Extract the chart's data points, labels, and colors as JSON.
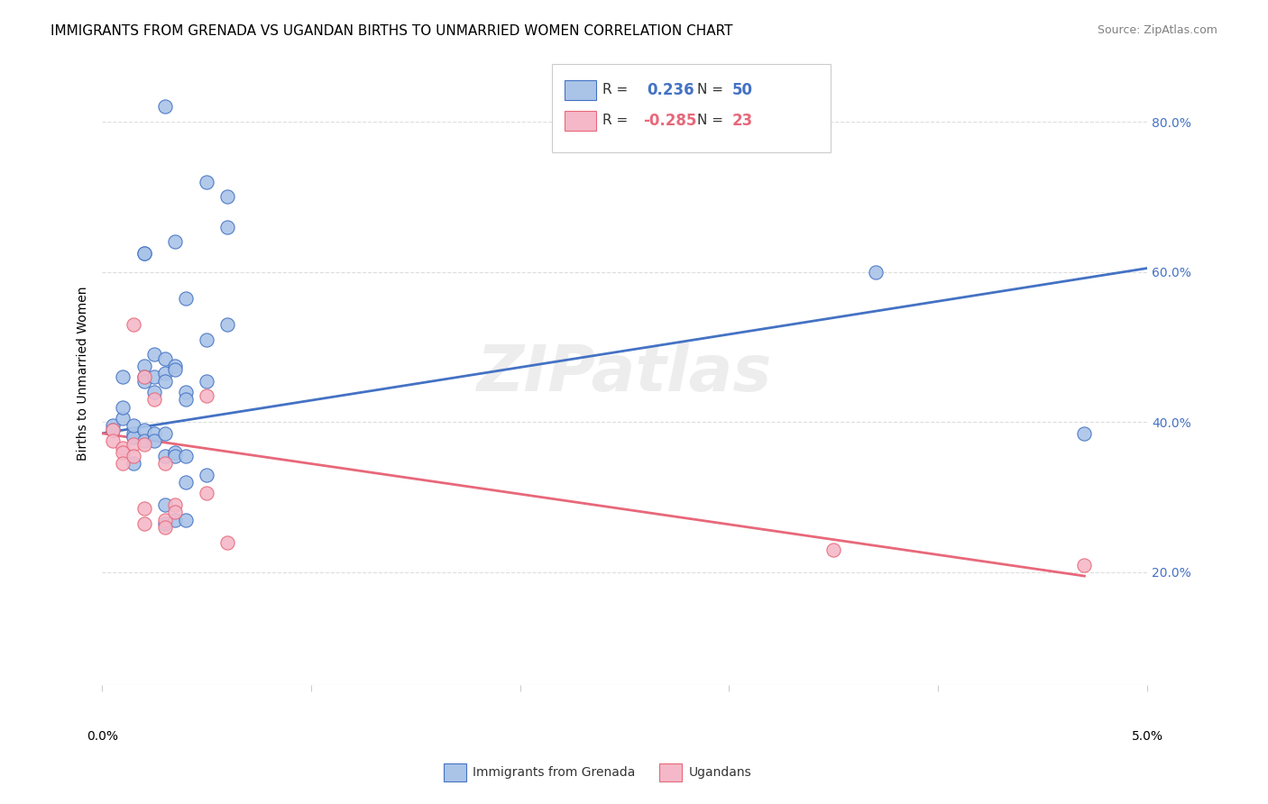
{
  "title": "IMMIGRANTS FROM GRENADA VS UGANDAN BIRTHS TO UNMARRIED WOMEN CORRELATION CHART",
  "source": "Source: ZipAtlas.com",
  "ylabel": "Births to Unmarried Women",
  "ytick_values": [
    0.2,
    0.4,
    0.6,
    0.8
  ],
  "xmin": 0.0,
  "xmax": 0.05,
  "ymin": 0.05,
  "ymax": 0.88,
  "blue_scatter": [
    [
      0.0005,
      0.395
    ],
    [
      0.0005,
      0.39
    ],
    [
      0.001,
      0.405
    ],
    [
      0.001,
      0.42
    ],
    [
      0.001,
      0.46
    ],
    [
      0.0015,
      0.385
    ],
    [
      0.0015,
      0.38
    ],
    [
      0.0015,
      0.395
    ],
    [
      0.0015,
      0.345
    ],
    [
      0.002,
      0.625
    ],
    [
      0.002,
      0.625
    ],
    [
      0.002,
      0.475
    ],
    [
      0.002,
      0.46
    ],
    [
      0.002,
      0.455
    ],
    [
      0.002,
      0.39
    ],
    [
      0.002,
      0.375
    ],
    [
      0.0025,
      0.49
    ],
    [
      0.0025,
      0.46
    ],
    [
      0.0025,
      0.44
    ],
    [
      0.0025,
      0.385
    ],
    [
      0.0025,
      0.375
    ],
    [
      0.003,
      0.82
    ],
    [
      0.003,
      0.485
    ],
    [
      0.003,
      0.465
    ],
    [
      0.003,
      0.455
    ],
    [
      0.003,
      0.385
    ],
    [
      0.003,
      0.355
    ],
    [
      0.003,
      0.29
    ],
    [
      0.003,
      0.265
    ],
    [
      0.0035,
      0.64
    ],
    [
      0.0035,
      0.475
    ],
    [
      0.0035,
      0.47
    ],
    [
      0.0035,
      0.36
    ],
    [
      0.0035,
      0.355
    ],
    [
      0.0035,
      0.27
    ],
    [
      0.004,
      0.565
    ],
    [
      0.004,
      0.44
    ],
    [
      0.004,
      0.43
    ],
    [
      0.004,
      0.355
    ],
    [
      0.004,
      0.32
    ],
    [
      0.004,
      0.27
    ],
    [
      0.005,
      0.72
    ],
    [
      0.005,
      0.51
    ],
    [
      0.005,
      0.455
    ],
    [
      0.005,
      0.33
    ],
    [
      0.006,
      0.7
    ],
    [
      0.006,
      0.66
    ],
    [
      0.006,
      0.53
    ],
    [
      0.047,
      0.385
    ],
    [
      0.037,
      0.6
    ]
  ],
  "pink_scatter": [
    [
      0.0005,
      0.39
    ],
    [
      0.0005,
      0.375
    ],
    [
      0.001,
      0.365
    ],
    [
      0.001,
      0.36
    ],
    [
      0.001,
      0.345
    ],
    [
      0.0015,
      0.53
    ],
    [
      0.0015,
      0.37
    ],
    [
      0.0015,
      0.355
    ],
    [
      0.002,
      0.46
    ],
    [
      0.002,
      0.37
    ],
    [
      0.002,
      0.285
    ],
    [
      0.002,
      0.265
    ],
    [
      0.0025,
      0.43
    ],
    [
      0.003,
      0.345
    ],
    [
      0.003,
      0.27
    ],
    [
      0.003,
      0.26
    ],
    [
      0.0035,
      0.29
    ],
    [
      0.0035,
      0.28
    ],
    [
      0.005,
      0.435
    ],
    [
      0.005,
      0.305
    ],
    [
      0.006,
      0.24
    ],
    [
      0.035,
      0.23
    ],
    [
      0.047,
      0.21
    ]
  ],
  "blue_line_x": [
    0.0,
    0.05
  ],
  "blue_line_y": [
    0.385,
    0.605
  ],
  "pink_line_x": [
    0.0,
    0.047
  ],
  "pink_line_y": [
    0.385,
    0.195
  ],
  "blue_color": "#aac4e8",
  "pink_color": "#f4b8c8",
  "blue_line_color": "#4472c4",
  "pink_line_color": "#e8687a",
  "grid_color": "#dddddd",
  "watermark": "ZIPatlas",
  "legend_r1": "R =  0.236",
  "legend_n1": "N = 50",
  "legend_r1_val": "0.236",
  "legend_n1_val": "50",
  "legend_r2": "R = -0.285",
  "legend_n2": "N = 23",
  "legend_r2_val": "-0.285",
  "legend_n2_val": "23",
  "bottom_legend": [
    "Immigrants from Grenada",
    "Ugandans"
  ],
  "title_fontsize": 11,
  "axis_fontsize": 9
}
